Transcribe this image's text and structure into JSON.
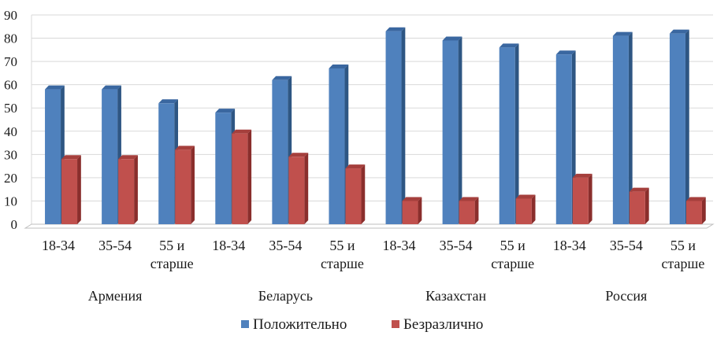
{
  "colors": {
    "positive_front": "#4f81bd",
    "positive_side": "#2e5683",
    "positive_top": "#3a67a0",
    "indifferent_front": "#c0504d",
    "indifferent_side": "#8a2e2c",
    "indifferent_top": "#a53f3c",
    "grid": "#d9d9d9",
    "floor": "#bfbfbf"
  },
  "chart_data": {
    "type": "bar",
    "title": "",
    "xlabel": "",
    "ylabel": "",
    "ylim": [
      0,
      90
    ],
    "yticks": [
      0,
      10,
      20,
      30,
      40,
      50,
      60,
      70,
      80,
      90
    ],
    "grid": true,
    "legend_position": "bottom",
    "groups": [
      "Армения",
      "Беларусь",
      "Казахстан",
      "Россия"
    ],
    "categories": [
      [
        "18-34"
      ],
      [
        "35-54"
      ],
      [
        "55 и",
        "старше"
      ],
      [
        "18-34"
      ],
      [
        "35-54"
      ],
      [
        "55 и",
        "старше"
      ],
      [
        "18-34"
      ],
      [
        "35-54"
      ],
      [
        "55 и",
        "старше"
      ],
      [
        "18-34"
      ],
      [
        "35-54"
      ],
      [
        "55 и",
        "старше"
      ]
    ],
    "series": [
      {
        "name": "Положительно",
        "values": [
          58,
          58,
          52,
          48,
          62,
          67,
          83,
          79,
          76,
          73,
          81,
          82
        ]
      },
      {
        "name": "Безразлично",
        "values": [
          28,
          28,
          32,
          39,
          29,
          24,
          10,
          10,
          11,
          20,
          14,
          10
        ]
      }
    ]
  }
}
